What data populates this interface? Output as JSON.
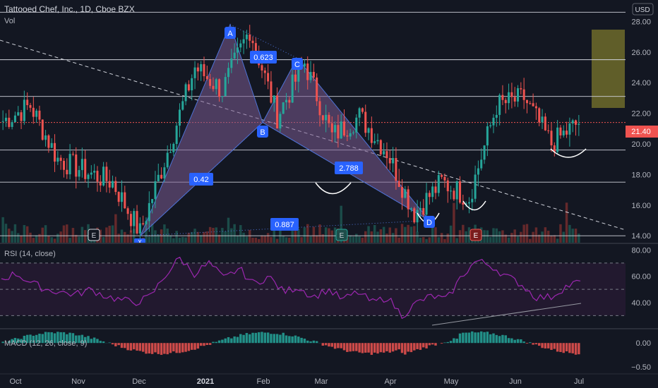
{
  "header": {
    "symbol_line": "Tattooed Chef, Inc., 1D, Cboe BZX",
    "volume_label": "Vol",
    "currency": "USD"
  },
  "colors": {
    "background": "#131722",
    "up": "#26a69a",
    "down": "#ef5350",
    "up_volume": "#1e5a54",
    "down_volume": "#7a2e2e",
    "pattern_fill": "#7b5b91",
    "pattern_line": "#4e72d6",
    "target_box": "#6f6b2a",
    "rsi": "#9c27b0",
    "rsi_band": "#2a1f3d",
    "price_tag": "#ef5350"
  },
  "chart_data": [
    {
      "type": "candlestick",
      "title": "Tattooed Chef, Inc., 1D, Cboe BZX",
      "x_ticks": [
        "Oct",
        "Nov",
        "Dec",
        "2021",
        "Feb",
        "Mar",
        "Apr",
        "May",
        "Jun",
        "Jul"
      ],
      "y_ticks": [
        "14.00",
        "16.00",
        "18.00",
        "20.00",
        "22.00",
        "24.00",
        "26.00",
        "28.00"
      ],
      "ylim": [
        13.5,
        29.4
      ],
      "last_price": "21.40",
      "horizontal_levels": [
        28.6,
        25.5,
        23.1,
        21.4,
        19.6,
        17.5,
        14.0
      ],
      "target_zone": [
        23.1,
        28.6
      ],
      "approx_close_path": [
        {
          "date": "Oct",
          "price": 21.5
        },
        {
          "date": "Oct mid",
          "price": 22.5
        },
        {
          "date": "Oct late",
          "price": 19.0
        },
        {
          "date": "Nov",
          "price": 18.2
        },
        {
          "date": "Nov mid",
          "price": 17.5
        },
        {
          "date": "Dec",
          "price": 14.2
        },
        {
          "date": "Dec mid",
          "price": 19.5
        },
        {
          "date": "Dec late",
          "price": 25.0
        },
        {
          "date": "2021",
          "price": 23.5
        },
        {
          "date": "Jan mid",
          "price": 27.5
        },
        {
          "date": "Feb",
          "price": 21.8
        },
        {
          "date": "Feb mid",
          "price": 25.3
        },
        {
          "date": "Mar",
          "price": 20.5
        },
        {
          "date": "Mar mid",
          "price": 21.8
        },
        {
          "date": "Apr",
          "price": 19.5
        },
        {
          "date": "Apr mid",
          "price": 15.5
        },
        {
          "date": "May",
          "price": 17.5
        },
        {
          "date": "May mid",
          "price": 16.5
        },
        {
          "date": "Jun",
          "price": 22.5
        },
        {
          "date": "Jun mid",
          "price": 23.0
        },
        {
          "date": "Jun late",
          "price": 20.0
        },
        {
          "date": "Jul",
          "price": 21.4
        }
      ],
      "pattern_points": [
        {
          "label": "X",
          "date": "Dec",
          "price": 14.0
        },
        {
          "label": "A",
          "date": "Jan mid",
          "price": 27.8
        },
        {
          "label": "B",
          "date": "Feb",
          "price": 21.4
        },
        {
          "label": "C",
          "date": "Feb late",
          "price": 25.6
        },
        {
          "label": "D",
          "date": "Apr mid",
          "price": 15.0
        }
      ],
      "ratio_labels": [
        "0.623",
        "0.42",
        "2.788",
        "0.887"
      ],
      "event_markers": [
        "E",
        "E",
        "E"
      ]
    },
    {
      "type": "line",
      "title": "RSI (14, close)",
      "y_ticks": [
        "80.00",
        "60.00",
        "40.00"
      ],
      "ylim": [
        20,
        85
      ],
      "bands": [
        70,
        50,
        30
      ],
      "approx_values": [
        58,
        62,
        55,
        50,
        48,
        46,
        50,
        45,
        42,
        40,
        44,
        60,
        74,
        62,
        70,
        58,
        66,
        54,
        60,
        48,
        52,
        44,
        50,
        42,
        48,
        40,
        44,
        30,
        40,
        45,
        42,
        60,
        72,
        68,
        60,
        54,
        44,
        44,
        52,
        56
      ]
    },
    {
      "type": "bar",
      "title": "MACD (12, 26, close, 9)",
      "y_ticks": [
        "0.00",
        "−0.50"
      ],
      "ylim": [
        -0.65,
        0.3
      ]
    }
  ]
}
